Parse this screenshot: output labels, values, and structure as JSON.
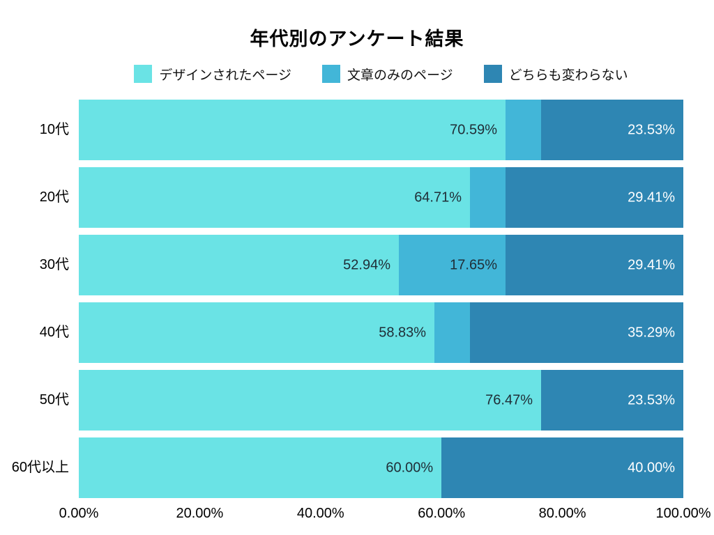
{
  "title": "年代別のアンケート結果",
  "colors": {
    "series_designed": "#6AE3E5",
    "series_text_only": "#42B6D8",
    "series_no_difference": "#2E86B3",
    "value_label_on_light": "#1F2D36",
    "value_label_on_dark": "#FFFFFF",
    "background": "#FFFFFF"
  },
  "chart_data": {
    "type": "bar",
    "orientation": "horizontal",
    "stacked": true,
    "grid": false,
    "legend_position": "top",
    "title": "年代別のアンケート結果",
    "xlabel": "",
    "ylabel": "",
    "xlim": [
      0,
      100
    ],
    "x_tick_labels": [
      "0.00%",
      "20.00%",
      "40.00%",
      "60.00%",
      "80.00%",
      "100.00%"
    ],
    "categories": [
      "10代",
      "20代",
      "30代",
      "40代",
      "50代",
      "60代以上"
    ],
    "series": [
      {
        "name": "デザインされたページ",
        "color": "#6AE3E5",
        "label_color": "#1F2D36",
        "values": [
          70.59,
          64.71,
          52.94,
          58.83,
          76.47,
          60.0
        ],
        "labels": [
          "70.59%",
          "64.71%",
          "52.94%",
          "58.83%",
          "76.47%",
          "60.00%"
        ]
      },
      {
        "name": "文章のみのページ",
        "color": "#42B6D8",
        "label_color": "#1F2D36",
        "values": [
          5.88,
          5.88,
          17.65,
          5.88,
          0,
          0
        ],
        "labels": [
          "",
          "",
          "17.65%",
          "",
          "",
          ""
        ]
      },
      {
        "name": "どちらも変わらない",
        "color": "#2E86B3",
        "label_color": "#FFFFFF",
        "values": [
          23.53,
          29.41,
          29.41,
          35.29,
          23.53,
          40.0
        ],
        "labels": [
          "23.53%",
          "29.41%",
          "29.41%",
          "35.29%",
          "23.53%",
          "40.00%"
        ]
      }
    ]
  }
}
